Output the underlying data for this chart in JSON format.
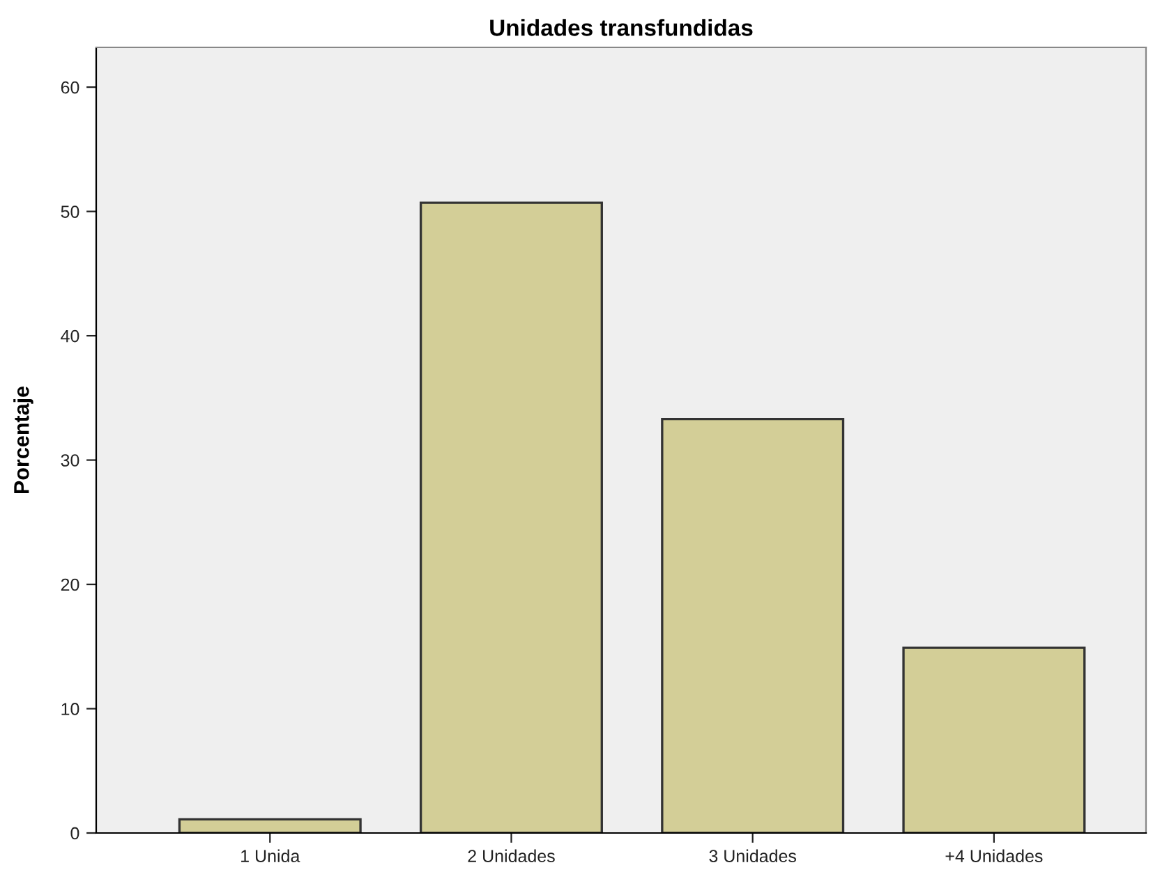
{
  "chart_data": {
    "type": "bar",
    "title": "Unidades transfundidas",
    "ylabel": "Porcentaje",
    "categories": [
      "1 Unida",
      "2 Unidades",
      "3 Unidades",
      "+4 Unidades"
    ],
    "values": [
      1.1,
      50.7,
      33.3,
      14.9
    ],
    "color": "#d3ce97",
    "ylim": [
      0,
      63.2
    ],
    "yticks": [
      0,
      10,
      20,
      30,
      40,
      50,
      60
    ],
    "grid": false
  }
}
